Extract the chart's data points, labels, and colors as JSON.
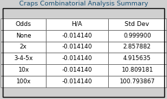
{
  "title": "Craps Combinatorial Analysis Summary",
  "columns": [
    "Odds",
    "H/A",
    "Std Dev"
  ],
  "rows": [
    [
      "None",
      "-0.014140",
      "0.999900"
    ],
    [
      "2x",
      "-0.014140",
      "2.857882"
    ],
    [
      "3-4-5x",
      "-0.014140",
      "4.915635"
    ],
    [
      "10x",
      "-0.014140",
      "10.809181"
    ],
    [
      "100x",
      "-0.014140",
      "100.793867"
    ]
  ],
  "bg_color": "#ffffff",
  "outer_bg": "#d0d0d0",
  "border_color": "#000000",
  "line_color": "#555555",
  "title_fontsize": 6.8,
  "header_fontsize": 6.5,
  "cell_fontsize": 6.2,
  "title_color": "#1a5276",
  "header_color": "#000000",
  "cell_color": "#000000",
  "figsize": [
    2.44,
    1.45
  ],
  "dpi": 100
}
